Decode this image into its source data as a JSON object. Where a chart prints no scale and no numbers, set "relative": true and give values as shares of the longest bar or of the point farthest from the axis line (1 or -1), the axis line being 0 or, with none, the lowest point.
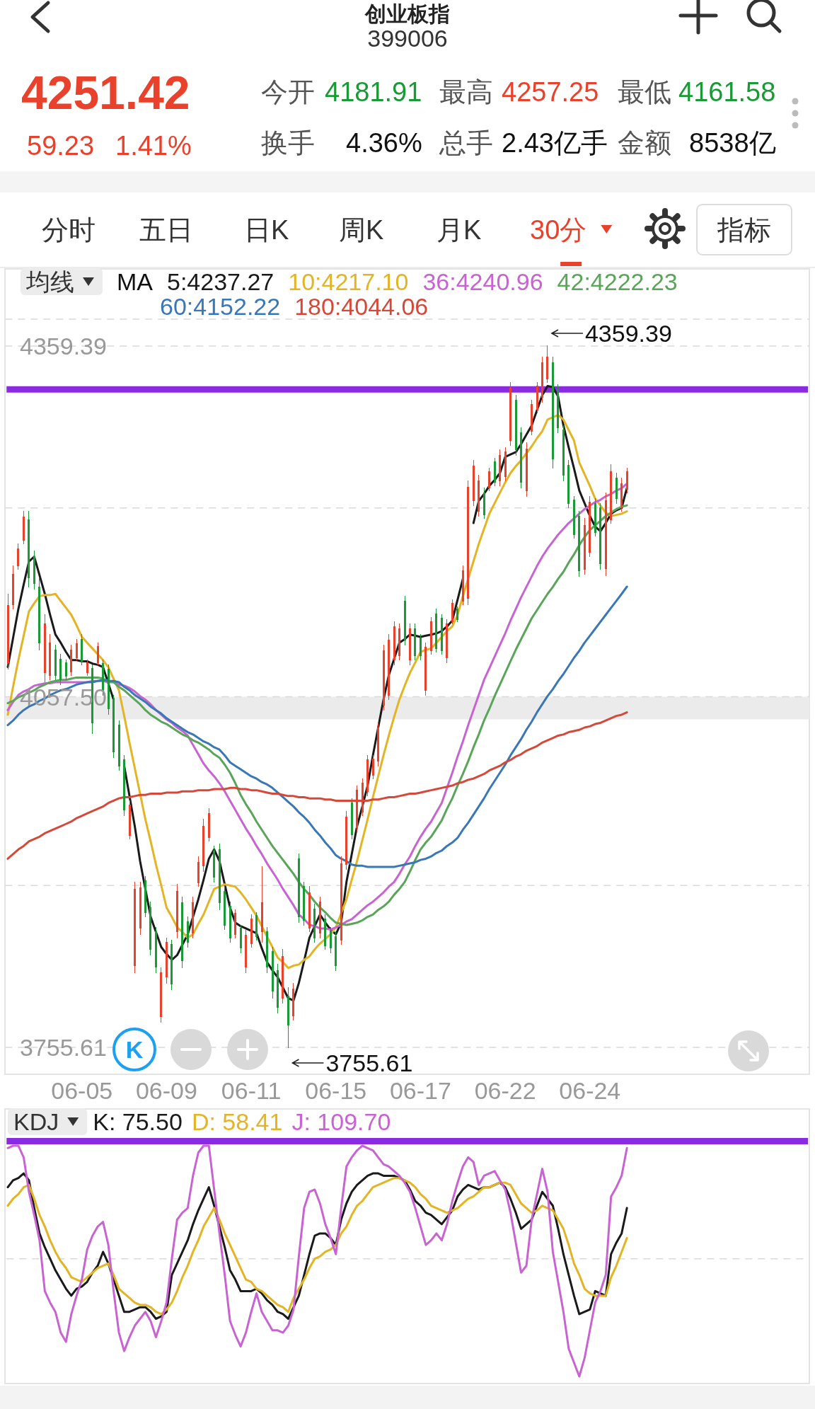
{
  "chart_data": [
    {
      "type": "other",
      "title": "创业板指",
      "subtitle": "399006",
      "annotations": [
        "4251.42",
        "59.23",
        "1.41%",
        "今开",
        "4181.91",
        "最高",
        "4257.25",
        "最低",
        "4161.58",
        "换手",
        "4.36%",
        "总手",
        "2.43亿手",
        "金额",
        "8538亿",
        "分时",
        "五日",
        "日K",
        "周K",
        "月K",
        "30分",
        "指标"
      ]
    },
    {
      "type": "candlestick",
      "legend_title": "均线",
      "legend": "top",
      "annotations": [
        "MA",
        "K",
        "4359.39",
        "3755.61"
      ],
      "categories": [
        null,
        null,
        null,
        null,
        null,
        null,
        null,
        null,
        null,
        null,
        null,
        null,
        null,
        null,
        "06-05",
        null,
        null,
        null,
        null,
        null,
        null,
        null,
        null,
        null,
        null,
        null,
        null,
        null,
        null,
        null,
        "06-09",
        null,
        null,
        null,
        null,
        null,
        null,
        null,
        null,
        null,
        null,
        null,
        null,
        null,
        null,
        null,
        "06-11",
        null,
        null,
        null,
        null,
        null,
        null,
        null,
        null,
        null,
        null,
        null,
        null,
        null,
        null,
        null,
        "06-15",
        null,
        null,
        null,
        null,
        null,
        null,
        null,
        null,
        null,
        null,
        null,
        null,
        null,
        null,
        null,
        "06-17",
        null,
        null,
        null,
        null,
        null,
        null,
        null,
        null,
        null,
        null,
        null,
        null,
        null,
        null,
        null,
        "06-22",
        null,
        null,
        null,
        null,
        null,
        null,
        null,
        null,
        null,
        null,
        null,
        null,
        null,
        null,
        null,
        "06-24",
        null,
        null,
        null,
        null,
        null,
        null,
        null
      ],
      "ohlc": [
        [
          4087,
          4146,
          4081,
          4136
        ],
        [
          4137,
          4170,
          4133,
          4163
        ],
        [
          4170,
          4189,
          4167,
          4185
        ],
        [
          4192,
          4217,
          4189,
          4212
        ],
        [
          4210,
          4217,
          4152,
          4160
        ],
        [
          4178,
          4183,
          4150,
          4155
        ],
        [
          4152,
          4159,
          4098,
          4104
        ],
        [
          4078,
          4128,
          4070,
          4120
        ],
        [
          4076,
          4111,
          4072,
          4104
        ],
        [
          4098,
          4102,
          4072,
          4076
        ],
        [
          4090,
          4094,
          4068,
          4072
        ],
        [
          4087,
          4089,
          4072,
          4075
        ],
        [
          4079,
          4102,
          4076,
          4098
        ],
        [
          4091,
          4107,
          4089,
          4103
        ],
        [
          4107,
          4111,
          4085,
          4088
        ],
        [
          4078,
          4089,
          4076,
          4087
        ],
        [
          4082,
          4085,
          4026,
          4035
        ],
        [
          4087,
          4104,
          4085,
          4101
        ],
        [
          4086,
          4089,
          4059,
          4063
        ],
        [
          4081,
          4085,
          4042,
          4047
        ],
        [
          4055,
          4059,
          4005,
          4010
        ],
        [
          4033,
          4037,
          3994,
          3998
        ],
        [
          4003,
          4007,
          3955,
          3960
        ],
        [
          3938,
          3968,
          3935,
          3964
        ],
        [
          3826,
          3898,
          3820,
          3892
        ],
        [
          3858,
          3898,
          3853,
          3893
        ],
        [
          3899,
          3903,
          3868,
          3872
        ],
        [
          3876,
          3881,
          3835,
          3840
        ],
        [
          3855,
          3859,
          3820,
          3825
        ],
        [
          3782,
          3824,
          3777,
          3820
        ],
        [
          3816,
          3850,
          3811,
          3846
        ],
        [
          3844,
          3848,
          3805,
          3810
        ],
        [
          3855,
          3896,
          3850,
          3890
        ],
        [
          3880,
          3885,
          3824,
          3830
        ],
        [
          3864,
          3868,
          3842,
          3846
        ],
        [
          3854,
          3885,
          3850,
          3880
        ],
        [
          3897,
          3920,
          3894,
          3915
        ],
        [
          3912,
          3952,
          3907,
          3946
        ],
        [
          3936,
          3961,
          3933,
          3957
        ],
        [
          3925,
          3929,
          3898,
          3902
        ],
        [
          3926,
          3931,
          3874,
          3880
        ],
        [
          3890,
          3894,
          3857,
          3861
        ],
        [
          3877,
          3881,
          3846,
          3850
        ],
        [
          3853,
          3874,
          3850,
          3871
        ],
        [
          3858,
          3861,
          3837,
          3841
        ],
        [
          3825,
          3857,
          3820,
          3852
        ],
        [
          3845,
          3870,
          3842,
          3866
        ],
        [
          3869,
          3872,
          3848,
          3851
        ],
        [
          3855,
          3911,
          3846,
          3880
        ],
        [
          3855,
          3859,
          3820,
          3825
        ],
        [
          3838,
          3842,
          3798,
          3804
        ],
        [
          3822,
          3827,
          3785,
          3790
        ],
        [
          3798,
          3840,
          3794,
          3834
        ],
        [
          3800,
          3807,
          3755.61,
          3775
        ],
        [
          3783,
          3811,
          3779,
          3806
        ],
        [
          3918,
          3922,
          3863,
          3868
        ],
        [
          3894,
          3898,
          3861,
          3865
        ],
        [
          3858,
          3894,
          3855,
          3889
        ],
        [
          3875,
          3879,
          3846,
          3850
        ],
        [
          3854,
          3885,
          3850,
          3881
        ],
        [
          3866,
          3870,
          3840,
          3843
        ],
        [
          3856,
          3859,
          3837,
          3841
        ],
        [
          3851,
          3855,
          3822,
          3826
        ],
        [
          3848,
          3920,
          3844,
          3914
        ],
        [
          3913,
          3959,
          3909,
          3954
        ],
        [
          3966,
          3970,
          3935,
          3939
        ],
        [
          3945,
          3981,
          3942,
          3977
        ],
        [
          3958,
          3987,
          3955,
          3983
        ],
        [
          3976,
          4007,
          3972,
          4003
        ],
        [
          3990,
          4007,
          3987,
          4004
        ],
        [
          4002,
          4035,
          3998,
          4031
        ],
        [
          4050,
          4102,
          4046,
          4097
        ],
        [
          4059,
          4111,
          4055,
          4106
        ],
        [
          4089,
          4122,
          4085,
          4118
        ],
        [
          4093,
          4120,
          4089,
          4116
        ],
        [
          4140,
          4144,
          4102,
          4106
        ],
        [
          4089,
          4120,
          4085,
          4116
        ],
        [
          4116,
          4120,
          4089,
          4093
        ],
        [
          4108,
          4111,
          4089,
          4093
        ],
        [
          4063,
          4104,
          4059,
          4100
        ],
        [
          4097,
          4126,
          4094,
          4122
        ],
        [
          4129,
          4133,
          4096,
          4099
        ],
        [
          4125,
          4128,
          4094,
          4097
        ],
        [
          4091,
          4124,
          4087,
          4120
        ],
        [
          4122,
          4141,
          4120,
          4138
        ],
        [
          4133,
          4135,
          4122,
          4124
        ],
        [
          4140,
          4170,
          4137,
          4166
        ],
        [
          4142,
          4243,
          4137,
          4238
        ],
        [
          4226,
          4261,
          4222,
          4256
        ],
        [
          4217,
          4248,
          4213,
          4243
        ],
        [
          4233,
          4237,
          4211,
          4214
        ],
        [
          4237,
          4254,
          4235,
          4251
        ],
        [
          4260,
          4263,
          4239,
          4242
        ],
        [
          4243,
          4270,
          4239,
          4265
        ],
        [
          4247,
          4272,
          4243,
          4268
        ],
        [
          4278,
          4328,
          4274,
          4323
        ],
        [
          4313,
          4317,
          4265,
          4270
        ],
        [
          4285,
          4289,
          4237,
          4242
        ],
        [
          4235,
          4276,
          4230,
          4271
        ],
        [
          4286,
          4313,
          4283,
          4309
        ],
        [
          4305,
          4328,
          4302,
          4325
        ],
        [
          4315,
          4350,
          4311,
          4345
        ],
        [
          4331,
          4359.39,
          4328,
          4350
        ],
        [
          4345,
          4350,
          4254,
          4262
        ],
        [
          4322,
          4326,
          4285,
          4289
        ],
        [
          4287,
          4291,
          4243,
          4248
        ],
        [
          4257,
          4261,
          4220,
          4224
        ],
        [
          4227,
          4230,
          4194,
          4197
        ],
        [
          4213,
          4217,
          4161,
          4166
        ],
        [
          4167,
          4211,
          4163,
          4205
        ],
        [
          4181.91,
          4230,
          4178,
          4225
        ],
        [
          4224,
          4228,
          4196,
          4199
        ],
        [
          4220,
          4224,
          4167,
          4172
        ],
        [
          4168,
          4233,
          4161.58,
          4226
        ],
        [
          4210,
          4257.25,
          4207,
          4251
        ],
        [
          4246,
          4250,
          4224,
          4228
        ],
        [
          4222,
          4246,
          4217,
          4241
        ],
        [
          4236,
          4254,
          4233,
          4251.42
        ]
      ],
      "series": [
        {
          "type": "line",
          "name": "5:4237.27",
          "color": "#1a1a1a",
          "values": [
            4083,
            4108,
            4133,
            4154,
            4174,
            4178,
            4162,
            4146,
            4128,
            4111,
            4104,
            4096,
            4089,
            4089,
            4088,
            4088,
            4086,
            4085,
            4083,
            4069,
            4055,
            null,
            3998,
            3972,
            3946,
            3916,
            3892,
            3868,
            3855,
            3842,
            3836,
            3831,
            3835,
            3844,
            3853,
            3868,
            3883,
            3900,
            3918,
            3926,
            3916,
            3896,
            3876,
            3863,
            3860,
            3858,
            3856,
            3854,
            3841,
            3829,
            3822,
            3816,
            3807,
            3798,
            3796,
            3811,
            3830,
            3850,
            3860,
            3870,
            3863,
            3857,
            3853,
            3863,
            3898,
            3922,
            3946,
            3963,
            3981,
            4007,
            4031,
            4055,
            4076,
            4090,
            4104,
            4107,
            4111,
            4110,
            4109,
            4110,
            4111,
            4112,
            4114,
            4118,
            4123,
            4141,
            4159,
            null,
            4207,
            4226,
            4232,
            4239,
            4244,
            4250,
            4264,
            4266,
            4268,
            4275,
            4283,
            4291,
            4304,
            4317,
            4325,
            4324,
            4316,
            4291,
            4272,
            4254,
            4235,
            4224,
            4213,
            4204,
            4200,
            4207,
            4215,
            4218,
            4220,
            4237.27
          ]
        },
        {
          "type": "line",
          "name": "10:4217.10",
          "color": "#e3b424",
          "values": [
            4042,
            4066,
            4089,
            4110,
            4131,
            4138,
            4144,
            4145,
            4145,
            4146,
            4140,
            4134,
            4128,
            4119,
            4109,
            4104,
            4099,
            4094,
            4089,
            4083,
            4073,
            4063,
            4041,
            4018,
            3996,
            3974,
            3952,
            3933,
            3913,
            3895,
            3876,
            3868,
            3859,
            3855,
            3850,
            3853,
            3862,
            3870,
            3881,
            3892,
            3894,
            3896,
            3895,
            3894,
            3889,
            3883,
            3876,
            3869,
            3860,
            3851,
            3842,
            3833,
            3829,
            3824,
            3826,
            3827,
            3831,
            3834,
            3840,
            3845,
            3849,
            3853,
            3859,
            3871,
            3883,
            3900,
            3916,
            3934,
            3952,
            3971,
            3989,
            4007,
            4024,
            4040,
            4055,
            4067,
            4078,
            4087,
            4096,
            4098,
            4099,
            4104,
            4109,
            4114,
            4118,
            4128,
            4144,
            4159,
            4174,
            4189,
            4202,
            4215,
            4224,
            4233,
            4242,
            4250,
            4256,
            4261,
            4267,
            4273,
            4280,
            4286,
            4296,
            4298,
            4300,
            4296,
            4287,
            4278,
            4259,
            4249,
            4239,
            4228,
            4222,
            4216,
            4213,
            4214,
            4215,
            4217.1
          ]
        },
        {
          "type": "line",
          "name": "36:4240.96",
          "color": "#c864d2",
          "values": [
            4046,
            4053,
            4059,
            4062,
            4064,
            4067,
            4068,
            4069,
            4069,
            4070,
            4070,
            4070,
            4070,
            4070,
            4070,
            4070,
            4071,
            4071,
            4071,
            4070,
            4070,
            4068,
            4067,
            4065,
            4062,
            4058,
            4055,
            4051,
            4046,
            4042,
            4038,
            4035,
            4031,
            4028,
            4024,
            4016,
            4008,
            4000,
            3994,
            3989,
            3983,
            3976,
            3968,
            3960,
            3952,
            3944,
            3937,
            3929,
            3922,
            3914,
            3907,
            3900,
            3892,
            3885,
            3878,
            3870,
            3866,
            3861,
            3860,
            3858,
            3858,
            3857,
            3859,
            3861,
            3864,
            3866,
            3870,
            3874,
            3878,
            3881,
            3885,
            3889,
            3894,
            3898,
            3905,
            3913,
            3920,
            3929,
            3937,
            3944,
            3950,
            3958,
            3966,
            3979,
            3992,
            4006,
            4019,
            4033,
            4046,
            4059,
            4072,
            4082,
            4092,
            4102,
            4112,
            4123,
            4133,
            4143,
            4152,
            4161,
            4170,
            4178,
            4185,
            4191,
            4197,
            4202,
            4207,
            4211,
            4215,
            4219,
            4222,
            4225,
            4227,
            4230,
            4232,
            4235,
            4237,
            4240.96
          ]
        },
        {
          "type": "line",
          "name": "42:4222.23",
          "color": "#5aa55a",
          "values": [
            4052,
            4054,
            4057,
            4059,
            4061,
            4063,
            4066,
            4068,
            4070,
            4071,
            4072,
            4072,
            4073,
            4074,
            4074,
            4074,
            4074,
            4074,
            4073,
            4071,
            4070,
            4066,
            4063,
            4059,
            4055,
            4051,
            4046,
            4042,
            4039,
            4036,
            4034,
            4031,
            4028,
            4025,
            4023,
            4020,
            4018,
            4015,
            4012,
            4008,
            4005,
            3999,
            3992,
            3983,
            3973,
            3965,
            3958,
            3950,
            3943,
            3936,
            3929,
            3923,
            3917,
            3911,
            3905,
            3898,
            3892,
            3887,
            3881,
            3876,
            3872,
            3867,
            3863,
            3862,
            3861,
            3862,
            3863,
            3865,
            3868,
            3870,
            3874,
            3877,
            3881,
            3887,
            3892,
            3898,
            3907,
            3917,
            3926,
            3932,
            3937,
            3944,
            3951,
            3961,
            3970,
            3981,
            3991,
            4002,
            4014,
            4025,
            4037,
            4047,
            4058,
            4068,
            4078,
            4088,
            4098,
            4107,
            4116,
            4125,
            4132,
            4139,
            4146,
            4152,
            4159,
            4165,
            4173,
            4180,
            4188,
            4195,
            4201,
            4205,
            4209,
            4213,
            4216,
            4219,
            4221,
            4222.23
          ]
        },
        {
          "type": "line",
          "name": "60:4152.22",
          "color": "#3a78b5",
          "values": [
            4033,
            4037,
            4042,
            4046,
            4049,
            4051,
            4054,
            4056,
            4059,
            4061,
            4063,
            4064,
            4066,
            4068,
            4069,
            4070,
            4070,
            4071,
            4072,
            4071,
            4071,
            4070,
            4066,
            4063,
            4059,
            4056,
            4053,
            4049,
            4046,
            4043,
            4039,
            4036,
            4033,
            4030,
            4027,
            4025,
            4022,
            4019,
            4017,
            4014,
            4012,
            4007,
            4001,
            3998,
            3995,
            3992,
            3989,
            3987,
            3984,
            3982,
            3979,
            3975,
            3971,
            3967,
            3963,
            3958,
            3954,
            3949,
            3943,
            3938,
            3932,
            3927,
            3921,
            3918,
            3916,
            3913,
            3912,
            3912,
            3911,
            3911,
            3911,
            3911,
            3911,
            3911,
            3912,
            3913,
            3914,
            3915,
            3917,
            3918,
            3920,
            3923,
            3925,
            3929,
            3932,
            3936,
            3943,
            3949,
            3956,
            3963,
            3970,
            3978,
            3985,
            3992,
            3999,
            4007,
            4014,
            4021,
            4029,
            4036,
            4044,
            4051,
            4058,
            4064,
            4071,
            4077,
            4084,
            4091,
            4097,
            4104,
            4110,
            4116,
            4122,
            4128,
            4134,
            4140,
            4146,
            4152.22
          ]
        },
        {
          "type": "line",
          "name": "180:4044.06",
          "color": "#d4493a",
          "values": [
            3918,
            3922,
            3926,
            3929,
            3933,
            3935,
            3937,
            3940,
            3942,
            3944,
            3946,
            3948,
            3950,
            3953,
            3955,
            3957,
            3959,
            3961,
            3963,
            3966,
            3968,
            3970,
            3971,
            3971,
            3972,
            3973,
            3973,
            3974,
            3974,
            3974,
            3975,
            3975,
            3975,
            3976,
            3976,
            3976,
            3977,
            3977,
            3977,
            3978,
            3978,
            3978,
            3979,
            3979,
            3978,
            3978,
            3977,
            3977,
            3976,
            3975,
            3974,
            3974,
            3973,
            3972,
            3972,
            3971,
            3971,
            3970,
            3970,
            3970,
            3969,
            3969,
            3968,
            3968,
            3968,
            3968,
            3968,
            3968,
            3968,
            3969,
            3969,
            3970,
            3971,
            3971,
            3972,
            3973,
            3974,
            3974,
            3975,
            3976,
            3977,
            3978,
            3979,
            3980,
            3981,
            3983,
            3984,
            3986,
            3987,
            3989,
            3991,
            3994,
            3996,
            3998,
            4001,
            4003,
            4006,
            4008,
            4011,
            4013,
            4015,
            4018,
            4020,
            4022,
            4024,
            4025,
            4027,
            4028,
            4029,
            4031,
            4032,
            4034,
            4035,
            4037,
            4039,
            4041,
            4042,
            4044.06
          ]
        }
      ],
      "ylim": [
        3732.5,
        4382.5
      ],
      "yticks": [
        {
          "value": 3755.61,
          "label": "3755.61"
        },
        {
          "value": 3895,
          "label": null
        },
        {
          "value": 4057.5,
          "label": "4057.50"
        },
        {
          "value": 4220,
          "label": null
        },
        {
          "value": 4359.39,
          "label": "4359.39"
        },
        {
          "value": 4382.5,
          "label": null
        }
      ],
      "grid": "y",
      "ref_lines": [
        {
          "axis": "y",
          "value": 4322,
          "color": "#8a2be2"
        }
      ],
      "bands": [
        {
          "axis": "y",
          "from": 4038,
          "to": 4057.5,
          "color": "#ebebeb"
        }
      ]
    },
    {
      "type": "line",
      "relative": true,
      "legend_title": "KDJ",
      "legend": "top left",
      "categories": [
        null,
        null,
        null,
        null,
        null,
        null,
        null,
        null,
        null,
        null,
        null,
        null,
        null,
        null,
        null,
        null,
        null,
        null,
        null,
        null,
        null,
        null,
        null,
        null,
        null,
        null,
        null,
        null,
        null,
        null,
        null,
        null,
        null,
        null,
        null,
        null,
        null,
        null,
        null,
        null,
        null,
        null,
        null,
        null,
        null,
        null,
        null,
        null,
        null,
        null,
        null,
        null,
        null,
        null,
        null,
        null,
        null,
        null,
        null,
        null,
        null,
        null,
        null,
        null,
        null,
        null,
        null,
        null,
        null,
        null,
        null,
        null,
        null,
        null,
        null,
        null,
        null,
        null,
        null,
        null,
        null,
        null,
        null,
        null,
        null,
        null,
        null,
        null,
        null,
        null,
        null,
        null,
        null,
        null,
        null,
        null,
        null,
        null,
        null,
        null,
        null,
        null,
        null,
        null,
        null,
        null,
        null,
        null,
        null,
        null,
        null,
        null,
        null,
        null,
        null,
        null,
        null,
        null
      ],
      "series": [
        {
          "name": "K: 75.50",
          "color": "#1a1a1a",
          "values": [
            0.82,
            0.85,
            0.86,
            0.88,
            0.85,
            0.73,
            0.62,
            0.56,
            0.51,
            0.46,
            0.42,
            0.38,
            0.35,
            0.38,
            0.39,
            0.41,
            0.45,
            0.48,
            0.54,
            0.49,
            0.42,
            0.35,
            0.28,
            0.28,
            0.29,
            0.3,
            0.3,
            0.28,
            0.25,
            0.26,
            0.28,
            0.44,
            0.49,
            0.54,
            0.59,
            0.66,
            0.72,
            0.77,
            0.82,
            0.74,
            0.65,
            0.56,
            0.46,
            0.42,
            0.37,
            0.37,
            0.37,
            0.38,
            0.36,
            0.33,
            0.31,
            0.28,
            0.27,
            0.25,
            0.3,
            0.35,
            0.44,
            0.53,
            0.61,
            0.62,
            0.62,
            0.6,
            0.57,
            0.68,
            0.75,
            0.8,
            0.83,
            0.85,
            0.87,
            0.88,
            0.88,
            0.87,
            0.87,
            0.87,
            0.86,
            0.85,
            0.81,
            0.76,
            0.74,
            0.71,
            0.7,
            0.68,
            0.66,
            0.69,
            0.72,
            0.78,
            0.81,
            0.83,
            0.82,
            0.81,
            0.82,
            0.82,
            0.83,
            0.84,
            0.82,
            0.77,
            0.71,
            0.64,
            0.66,
            0.68,
            0.74,
            0.8,
            0.77,
            0.74,
            0.64,
            0.53,
            0.44,
            0.35,
            0.27,
            0.28,
            0.29,
            0.37,
            0.36,
            0.35,
            0.53,
            0.58,
            0.62,
            0.73
          ]
        },
        {
          "name": "D: 58.41",
          "color": "#e3b424",
          "values": [
            0.74,
            0.77,
            0.79,
            0.82,
            0.83,
            0.77,
            0.7,
            0.65,
            0.59,
            0.54,
            0.5,
            0.47,
            0.43,
            0.42,
            0.41,
            0.43,
            0.45,
            0.47,
            0.48,
            0.49,
            0.44,
            0.38,
            0.36,
            0.34,
            0.32,
            0.31,
            0.31,
            0.3,
            0.28,
            0.27,
            0.29,
            0.32,
            0.37,
            0.43,
            0.48,
            0.54,
            0.59,
            0.65,
            0.69,
            0.73,
            0.68,
            0.62,
            0.57,
            0.52,
            0.47,
            0.42,
            0.41,
            0.38,
            0.37,
            0.35,
            0.33,
            0.31,
            0.3,
            0.28,
            0.34,
            0.38,
            0.42,
            0.47,
            0.51,
            0.52,
            0.54,
            0.55,
            0.57,
            0.62,
            0.65,
            0.7,
            0.74,
            0.76,
            0.79,
            0.82,
            0.83,
            0.84,
            0.85,
            0.86,
            0.86,
            0.85,
            0.84,
            0.82,
            0.79,
            0.77,
            0.74,
            0.73,
            0.72,
            0.71,
            0.72,
            0.73,
            0.75,
            0.77,
            0.78,
            0.8,
            0.82,
            0.82,
            0.83,
            0.84,
            0.84,
            0.83,
            0.79,
            0.75,
            0.73,
            0.71,
            0.72,
            0.74,
            0.73,
            0.72,
            0.68,
            0.64,
            0.57,
            0.49,
            0.44,
            0.38,
            0.36,
            0.35,
            0.35,
            0.35,
            0.43,
            0.48,
            0.54,
            0.6
          ]
        },
        {
          "name": "J: 109.70",
          "color": "#c864d2",
          "values": [
            0.99,
            1.0,
            1.0,
            0.95,
            0.8,
            0.7,
            0.59,
            0.37,
            0.32,
            0.28,
            0.19,
            0.15,
            0.27,
            0.35,
            0.42,
            0.55,
            0.61,
            0.65,
            0.67,
            0.57,
            0.37,
            0.19,
            0.11,
            0.17,
            0.22,
            0.25,
            0.28,
            0.24,
            0.17,
            0.24,
            0.32,
            0.51,
            0.68,
            0.71,
            0.73,
            0.87,
            0.97,
            1.0,
            1.0,
            0.81,
            0.62,
            0.44,
            0.24,
            0.18,
            0.13,
            0.19,
            0.28,
            0.36,
            0.28,
            0.24,
            0.2,
            0.2,
            0.19,
            0.22,
            0.29,
            0.52,
            0.73,
            0.8,
            0.81,
            0.75,
            0.66,
            0.6,
            0.53,
            0.73,
            0.91,
            0.95,
            0.98,
            1.0,
            0.99,
            0.98,
            0.95,
            0.92,
            0.91,
            0.89,
            0.87,
            0.84,
            0.8,
            0.73,
            0.65,
            0.57,
            0.59,
            0.62,
            0.59,
            0.66,
            0.76,
            0.84,
            0.91,
            0.95,
            0.93,
            0.83,
            0.87,
            0.88,
            0.89,
            0.85,
            0.81,
            0.71,
            0.58,
            0.45,
            0.48,
            0.68,
            0.79,
            0.9,
            0.8,
            0.54,
            0.41,
            0.28,
            0.12,
            0.06,
            0.0,
            0.08,
            0.2,
            0.32,
            0.37,
            0.44,
            0.78,
            0.82,
            0.87,
            0.99
          ]
        }
      ],
      "ref_lines": [
        {
          "axis": "y",
          "value": 0.51,
          "color": "#d9d9d9",
          "line_style": "dashed"
        },
        {
          "axis": "y",
          "value": 1.02,
          "color": "#8a2be2"
        }
      ]
    }
  ]
}
